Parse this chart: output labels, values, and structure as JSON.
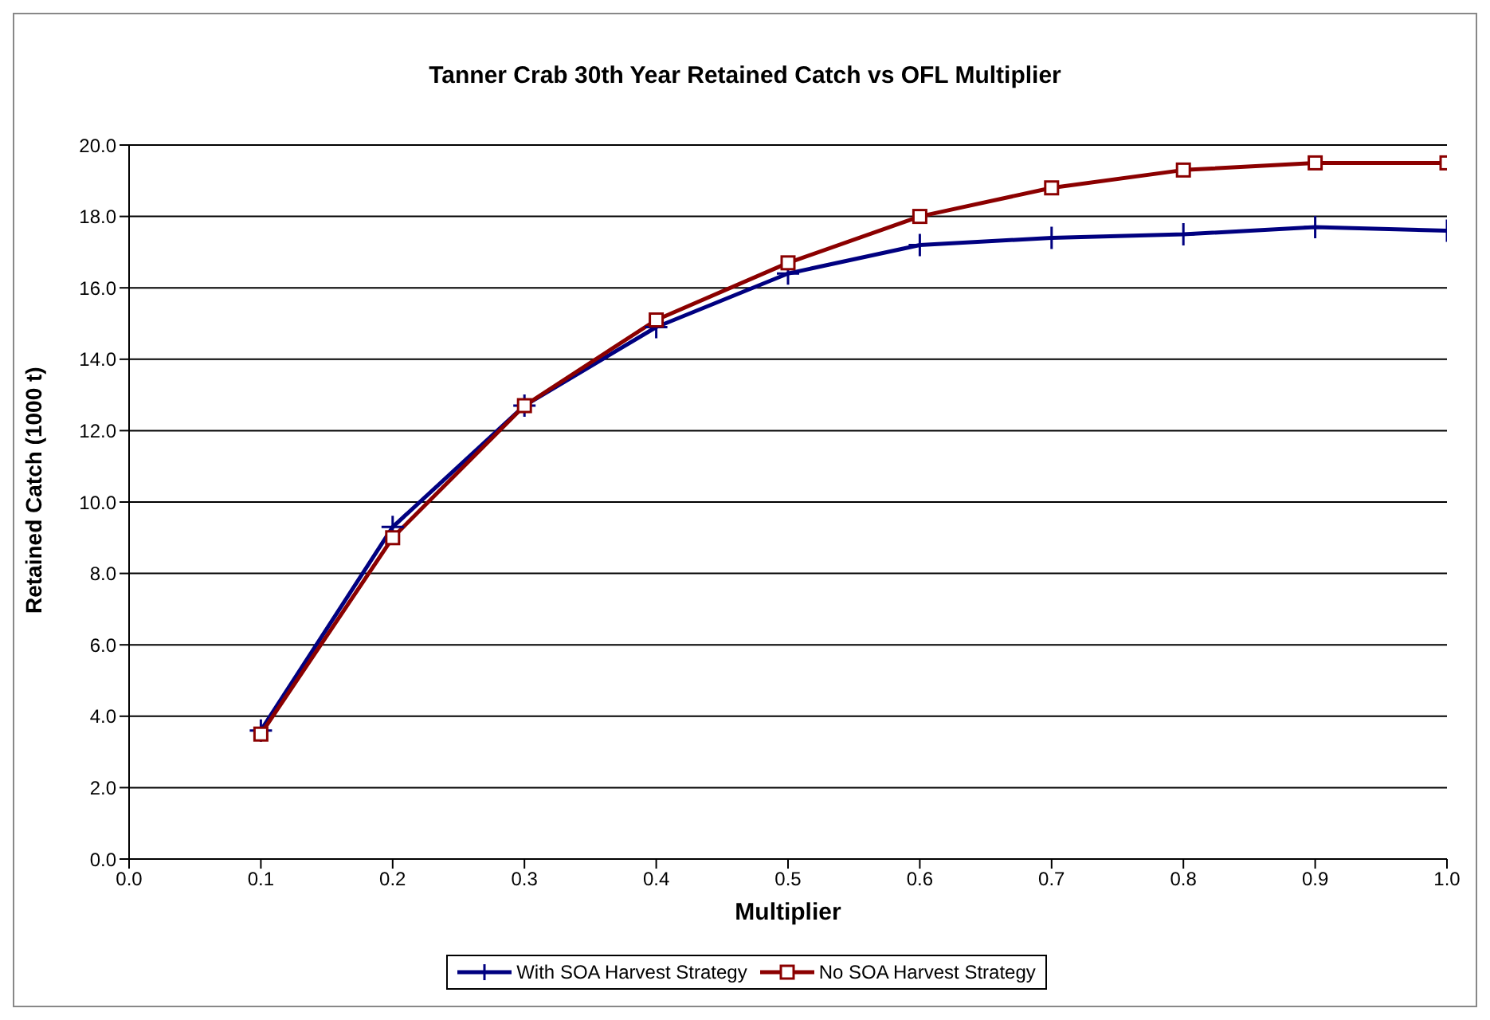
{
  "chart_data": {
    "type": "line",
    "title": "Tanner Crab 30th Year Retained Catch vs OFL Multiplier",
    "xlabel": "Multiplier",
    "ylabel": "Retained Catch (1000 t)",
    "x": [
      0.1,
      0.2,
      0.3,
      0.4,
      0.5,
      0.6,
      0.7,
      0.8,
      0.9,
      1.0
    ],
    "series": [
      {
        "name": "With SOA Harvest Strategy",
        "color": "#000080",
        "marker": "cross",
        "values": [
          3.6,
          9.3,
          12.7,
          14.9,
          16.4,
          17.2,
          17.4,
          17.5,
          17.7,
          17.6
        ]
      },
      {
        "name": "No SOA Harvest Strategy",
        "color": "#8b0000",
        "marker": "square",
        "values": [
          3.5,
          9.0,
          12.7,
          15.1,
          16.7,
          18.0,
          18.8,
          19.3,
          19.5,
          19.5
        ]
      }
    ],
    "xlim": [
      0,
      1.0
    ],
    "xticks": [
      {
        "value": 0,
        "label": "0.0"
      },
      0.1,
      0.2,
      0.3,
      0.4,
      0.5,
      0.6,
      0.7,
      0.8,
      0.9,
      {
        "value": 1.0,
        "label": "1.0"
      }
    ],
    "ylim": [
      0,
      20
    ],
    "yticks": [
      {
        "value": 0,
        "label": "0.0"
      },
      {
        "value": 2,
        "label": "2.0"
      },
      {
        "value": 4,
        "label": "4.0"
      },
      {
        "value": 6,
        "label": "6.0"
      },
      {
        "value": 8,
        "label": "8.0"
      },
      {
        "value": 10,
        "label": "10.0"
      },
      {
        "value": 12,
        "label": "12.0"
      },
      {
        "value": 14,
        "label": "14.0"
      },
      {
        "value": 16,
        "label": "16.0"
      },
      {
        "value": 18,
        "label": "18.0"
      },
      {
        "value": 20,
        "label": "20.0"
      }
    ],
    "grid": "y",
    "legend": "bottom"
  }
}
